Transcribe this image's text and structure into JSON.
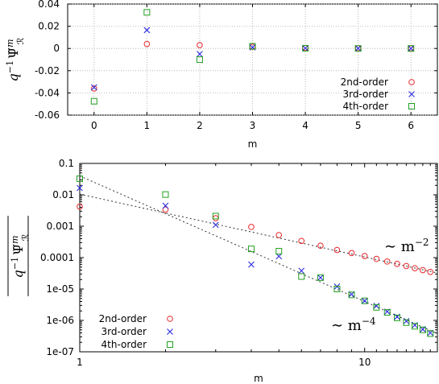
{
  "colors": {
    "2nd": "#e8282b",
    "3rd": "#2b2be0",
    "4th": "#22a022",
    "grid": "#aaaaaa",
    "fit": "#333333"
  },
  "chart_data": [
    {
      "type": "scatter",
      "xlabel": "m",
      "ylabel_base": "q",
      "ylabel_exp": "−1",
      "ylabel_psi": "Ψ̃",
      "ylabel_sup": "m",
      "ylabel_sub": "ℛ",
      "xlim": [
        -0.5,
        6.5
      ],
      "ylim": [
        -0.06,
        0.04
      ],
      "xticks": [
        "0",
        "1",
        "2",
        "3",
        "4",
        "5",
        "6"
      ],
      "yticks": [
        "0.04",
        "0.02",
        "0",
        "-0.02",
        "-0.04",
        "-0.06"
      ],
      "grid": true,
      "legend_position": "bottom-right",
      "series": [
        {
          "name": "2nd-order",
          "marker": "circle",
          "x": [
            0,
            1,
            2,
            3,
            4,
            5,
            6
          ],
          "y": [
            -0.036,
            0.004,
            0.003,
            0.0015,
            0.0005,
            0.0002,
            0.0001
          ]
        },
        {
          "name": "3rd-order",
          "marker": "x",
          "x": [
            0,
            1,
            2,
            3,
            4,
            5,
            6
          ],
          "y": [
            -0.035,
            0.0165,
            -0.005,
            0.001,
            0.0003,
            0.0001,
            0.0
          ]
        },
        {
          "name": "4th-order",
          "marker": "square",
          "x": [
            0,
            1,
            2,
            3,
            4,
            5,
            6
          ],
          "y": [
            -0.0475,
            0.0325,
            -0.01,
            0.002,
            0.0002,
            0.0,
            0.0
          ]
        }
      ]
    },
    {
      "type": "scatter",
      "scale": "log-log",
      "xlabel": "m",
      "ylabel_base": "q",
      "ylabel_exp": "−1",
      "ylabel_psi": "Ψ̃",
      "ylabel_sup": "m",
      "ylabel_sub": "ℛ",
      "xlim": [
        1,
        18
      ],
      "ylim": [
        1e-07,
        0.1
      ],
      "xticks": [
        "1",
        "10"
      ],
      "yticks": [
        "0.1",
        "0.01",
        "0.001",
        "0.0001",
        "1e-05",
        "1e-06",
        "1e-07"
      ],
      "legend_position": "bottom-left",
      "annotations": [
        {
          "text": "∼ m",
          "sup": "−2"
        },
        {
          "text": "∼ m",
          "sup": "−4"
        }
      ],
      "fit_lines": [
        {
          "power": -2,
          "y_at_1": 0.0105
        },
        {
          "power": -4,
          "y_at_1": 0.04
        }
      ],
      "series": [
        {
          "name": "2nd-order",
          "marker": "circle",
          "x": [
            1,
            2,
            3,
            4,
            5,
            6,
            7,
            8,
            9,
            10,
            11,
            12,
            13,
            14,
            15,
            16,
            17
          ],
          "y": [
            0.0042,
            0.0034,
            0.0018,
            0.00095,
            0.00052,
            0.00034,
            0.00024,
            0.000175,
            0.00014,
            0.000112,
            9.1e-05,
            7.5e-05,
            6.3e-05,
            5.4e-05,
            4.6e-05,
            4e-05,
            3.5e-05
          ]
        },
        {
          "name": "3rd-order",
          "marker": "x",
          "x": [
            1,
            2,
            3,
            4,
            5,
            6,
            7,
            8,
            9,
            10,
            11,
            12,
            13,
            14,
            15,
            16,
            17
          ],
          "y": [
            0.0165,
            0.0045,
            0.0011,
            6e-05,
            0.00011,
            3.8e-05,
            2.3e-05,
            1.2e-05,
            6.8e-06,
            4.2e-06,
            2.9e-06,
            1.9e-06,
            1.3e-06,
            9.5e-07,
            7e-07,
            5.2e-07,
            4e-07
          ]
        },
        {
          "name": "4th-order",
          "marker": "square",
          "x": [
            1,
            2,
            3,
            4,
            5,
            6,
            7,
            8,
            9,
            10,
            11,
            12,
            13,
            14,
            15,
            16,
            17
          ],
          "y": [
            0.0325,
            0.0102,
            0.0021,
            0.00019,
            0.00016,
            2.5e-05,
            2.3e-05,
            1e-05,
            6.5e-06,
            4.2e-06,
            2.6e-06,
            1.8e-06,
            1.2e-06,
            8.5e-07,
            6.5e-07,
            5e-07,
            3.8e-07
          ]
        }
      ]
    }
  ]
}
